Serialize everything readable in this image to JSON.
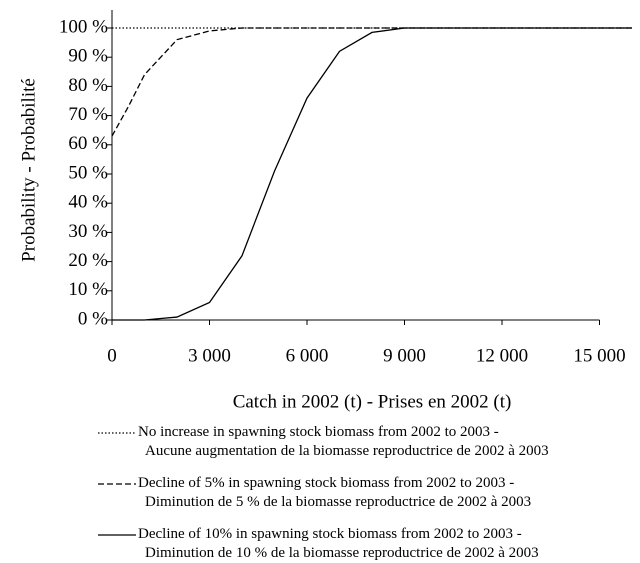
{
  "chart_data": {
    "type": "line",
    "xlabel": "Catch in 2002 (t) - Prises en 2002  (t)",
    "ylabel": "Probability - Probabilité",
    "x": [
      0,
      500,
      1000,
      1500,
      2000,
      3000,
      4000,
      5000,
      6000,
      7000,
      8000,
      9000,
      10000,
      11000,
      12000,
      13000,
      14000,
      15000,
      16000
    ],
    "xlim": [
      0,
      16000
    ],
    "xticks": [
      0,
      {
        "value": 3000,
        "label": "3 000"
      },
      {
        "value": 6000,
        "label": "6 000"
      },
      {
        "value": 9000,
        "label": "9 000"
      },
      {
        "value": 12000,
        "label": "12 000"
      },
      {
        "value": 15000,
        "label": "15 000"
      }
    ],
    "ylim": [
      0,
      100
    ],
    "yticks": [
      {
        "value": 0,
        "label": "0 %"
      },
      {
        "value": 10,
        "label": "10 %"
      },
      {
        "value": 20,
        "label": "20 %"
      },
      {
        "value": 30,
        "label": "30 %"
      },
      {
        "value": 40,
        "label": "40 %"
      },
      {
        "value": 50,
        "label": "50 %"
      },
      {
        "value": 60,
        "label": "60 %"
      },
      {
        "value": 70,
        "label": "70 %"
      },
      {
        "value": 80,
        "label": "80 %"
      },
      {
        "value": 90,
        "label": "90 %"
      },
      {
        "value": 100,
        "label": "100 %"
      }
    ],
    "series": [
      {
        "name": "No increase in spawning stock biomass from 2002 to 2003 -\nAucune augmentation de la biomasse reproductrice de 2002 à 2003",
        "color": "#000000",
        "dash": "dotted",
        "values": [
          100,
          100,
          100,
          100,
          100,
          100,
          100,
          100,
          100,
          100,
          100,
          100,
          100,
          100,
          100,
          100,
          100,
          100,
          100
        ]
      },
      {
        "name": "Decline of 5% in spawning stock biomass from 2002 to 2003  -\nDiminution de 5 % de la biomasse reproductrice de 2002 à 2003",
        "color": "#000000",
        "dash": "dashed",
        "values": [
          63,
          73,
          84,
          90,
          96,
          99,
          100,
          100,
          100,
          100,
          100,
          100,
          100,
          100,
          100,
          100,
          100,
          100,
          100
        ]
      },
      {
        "name": "Decline of 10% in spawning stock biomass from 2002 to 2003  -\nDiminution de 10 % de la biomasse reproductrice de 2002 à 2003",
        "color": "#000000",
        "dash": "solid",
        "values": [
          0,
          0,
          0,
          0.5,
          1,
          6,
          22,
          51,
          76,
          92,
          98.5,
          100,
          100,
          100,
          100,
          100,
          100,
          100,
          100
        ]
      }
    ]
  }
}
